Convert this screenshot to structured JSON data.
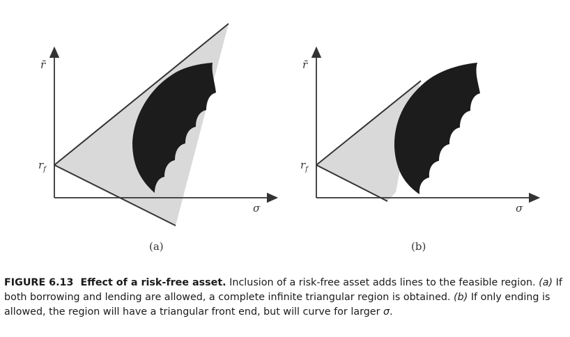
{
  "figure": {
    "panels": [
      {
        "label": "(a)",
        "y_axis": "r̄",
        "x_axis": "σ",
        "rf_label": "r",
        "rf_sub": "f"
      },
      {
        "label": "(b)",
        "y_axis": "r̄",
        "x_axis": "σ",
        "rf_label": "r",
        "rf_sub": "f"
      }
    ],
    "colors": {
      "region": "#d9d9d9",
      "bat": "#1c1c1c",
      "line": "#333333"
    }
  },
  "caption": {
    "number": "FIGURE 6.13",
    "title": "Effect of a risk-free asset.",
    "text_1": " Inclusion of a risk-free asset adds lines to the feasible region. ",
    "ref_a": "(a)",
    "text_2": " If both borrowing and lending are allowed, a complete infinite triangular region is obtained. ",
    "ref_b": "(b)",
    "text_3": " If only ending is allowed, the region will have a triangular front end, but will curve for larger ",
    "sigma": "σ",
    "text_4": "."
  }
}
